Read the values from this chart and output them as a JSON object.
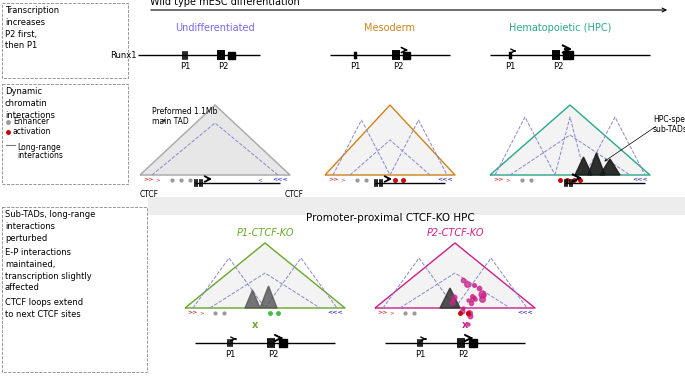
{
  "title_top": "Wild type mESC differentiation",
  "title_bottom": "Promoter-proximal CTCF-KO HPC",
  "stages": [
    "Undifferentiated",
    "Mesoderm",
    "Hematopoietic (HPC)"
  ],
  "stage_colors": [
    "#7b68ee",
    "#d2841a",
    "#2aaa8a"
  ],
  "ko_labels": [
    "P1-CTCF-KO",
    "P2-CTCF-KO"
  ],
  "ko_colors": [
    "#6aaa2a",
    "#cc2288"
  ],
  "bg_color": "#ffffff",
  "tad_fill": "#d8d8d8",
  "ctcf_arrow_red": "#cc3333",
  "ctcf_arrow_blue": "#3333cc",
  "enhancer_gray": "#999999",
  "enhancer_red": "#cc0000",
  "font_size_main": 7,
  "font_size_small": 6
}
